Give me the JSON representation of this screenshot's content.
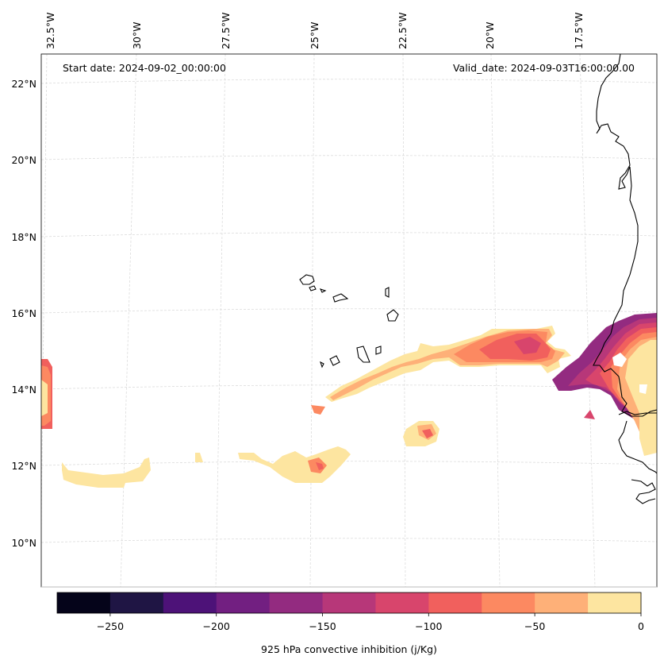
{
  "header": {
    "start_date": "Start date: 2024-09-02_00:00:00",
    "valid_date": "Valid_date: 2024-09-03T16:00:00.00"
  },
  "longitude_labels": [
    "32.5°W",
    "30°W",
    "27.5°W",
    "25°W",
    "22.5°W",
    "20°W",
    "17.5°W"
  ],
  "latitude_labels": [
    "22°N",
    "20°N",
    "18°N",
    "16°N",
    "14°N",
    "12°N",
    "10°N"
  ],
  "colorbar": {
    "label": "925 hPa convective inhibition (j/Kg)",
    "tick_labels": [
      "−250",
      "−200",
      "−150",
      "−100",
      "−50",
      "0"
    ],
    "levels": [
      -275,
      -250,
      -225,
      -200,
      -175,
      -150,
      -125,
      -100,
      -75,
      -50,
      -25,
      0
    ],
    "colors": [
      "#05041a",
      "#1f1544",
      "#4d1278",
      "#721f81",
      "#932b80",
      "#b73779",
      "#d8456c",
      "#f1605d",
      "#fc8961",
      "#feb078",
      "#fde5a0"
    ]
  },
  "colors": {
    "coastline": "#000000",
    "grid": "#dcdcdc",
    "background": "#ffffff"
  }
}
